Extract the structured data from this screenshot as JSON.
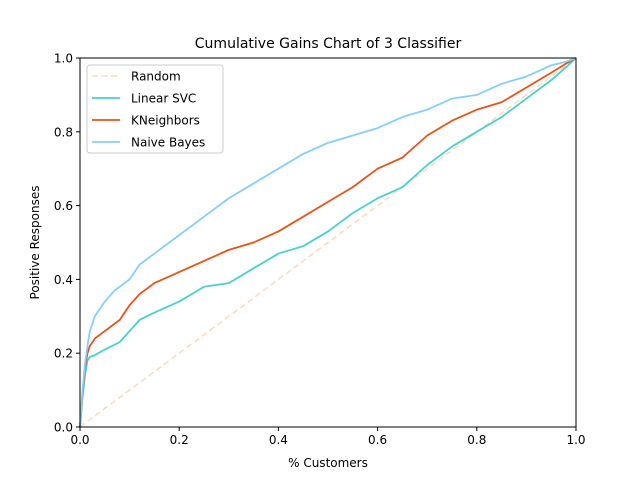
{
  "chart_data": {
    "type": "line",
    "title": "Cumulative Gains Chart of 3 Classifier",
    "xlabel": "% Customers",
    "ylabel": "Positive Responses",
    "xlim": [
      0,
      1
    ],
    "ylim": [
      0,
      1
    ],
    "xticks": [
      "0.0",
      "0.2",
      "0.4",
      "0.6",
      "0.8",
      "1.0"
    ],
    "yticks": [
      "0.0",
      "0.2",
      "0.4",
      "0.6",
      "0.8",
      "1.0"
    ],
    "grid": false,
    "legend_position": "upper-left",
    "series": [
      {
        "name": "Random",
        "color": "#ffdab9",
        "dashed": true,
        "x": [
          0,
          1
        ],
        "y": [
          0,
          1
        ]
      },
      {
        "name": "Linear SVC",
        "color": "#48d1cc",
        "dashed": false,
        "x": [
          0,
          0.005,
          0.01,
          0.015,
          0.02,
          0.03,
          0.05,
          0.08,
          0.1,
          0.12,
          0.15,
          0.2,
          0.25,
          0.3,
          0.35,
          0.4,
          0.45,
          0.5,
          0.55,
          0.6,
          0.65,
          0.7,
          0.75,
          0.8,
          0.85,
          0.9,
          0.95,
          0.98,
          1.0
        ],
        "y": [
          0,
          0.08,
          0.14,
          0.18,
          0.19,
          0.195,
          0.21,
          0.23,
          0.26,
          0.29,
          0.31,
          0.34,
          0.38,
          0.39,
          0.43,
          0.47,
          0.49,
          0.53,
          0.58,
          0.62,
          0.65,
          0.71,
          0.76,
          0.8,
          0.84,
          0.89,
          0.94,
          0.975,
          1.0
        ]
      },
      {
        "name": "KNeighbors",
        "color": "#e8531a",
        "dashed": false,
        "x": [
          0,
          0.005,
          0.01,
          0.015,
          0.02,
          0.03,
          0.05,
          0.08,
          0.1,
          0.12,
          0.15,
          0.2,
          0.25,
          0.3,
          0.35,
          0.4,
          0.45,
          0.5,
          0.55,
          0.6,
          0.65,
          0.7,
          0.75,
          0.8,
          0.85,
          0.9,
          0.95,
          0.98,
          1.0
        ],
        "y": [
          0,
          0.09,
          0.16,
          0.2,
          0.22,
          0.24,
          0.26,
          0.29,
          0.33,
          0.36,
          0.39,
          0.42,
          0.45,
          0.48,
          0.5,
          0.53,
          0.57,
          0.61,
          0.65,
          0.7,
          0.73,
          0.79,
          0.83,
          0.86,
          0.88,
          0.92,
          0.96,
          0.985,
          1.0
        ]
      },
      {
        "name": "Naive Bayes",
        "color": "#87cefa",
        "dashed": false,
        "x": [
          0,
          0.005,
          0.01,
          0.015,
          0.02,
          0.03,
          0.05,
          0.07,
          0.1,
          0.12,
          0.15,
          0.2,
          0.25,
          0.3,
          0.35,
          0.4,
          0.45,
          0.5,
          0.55,
          0.6,
          0.65,
          0.7,
          0.75,
          0.8,
          0.85,
          0.9,
          0.95,
          0.98,
          1.0
        ],
        "y": [
          0,
          0.1,
          0.17,
          0.22,
          0.26,
          0.3,
          0.34,
          0.37,
          0.4,
          0.44,
          0.47,
          0.52,
          0.57,
          0.62,
          0.66,
          0.7,
          0.74,
          0.77,
          0.79,
          0.81,
          0.84,
          0.86,
          0.89,
          0.9,
          0.93,
          0.95,
          0.98,
          0.99,
          1.0
        ]
      }
    ]
  }
}
